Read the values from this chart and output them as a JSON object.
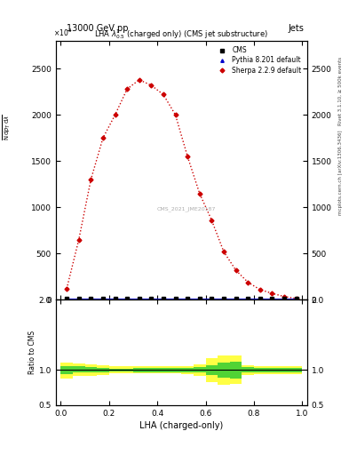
{
  "title_top_left": "13000 GeV pp",
  "title_top_right": "Jets",
  "plot_title": "LHA $\\lambda^{1}_{0.5}$ (charged only) (CMS jet substructure)",
  "xlabel": "LHA (charged-only)",
  "right_label_top": "Rivet 3.1.10, ≥ 500k events",
  "right_label_bottom": "mcplots.cern.ch [arXiv:1306.3436]",
  "watermark": "CMS_2021_JME20187",
  "sherpa_x": [
    0.025,
    0.075,
    0.125,
    0.175,
    0.225,
    0.275,
    0.325,
    0.375,
    0.425,
    0.475,
    0.525,
    0.575,
    0.625,
    0.675,
    0.725,
    0.775,
    0.825,
    0.875,
    0.925,
    0.975
  ],
  "sherpa_y": [
    120,
    650,
    1300,
    1750,
    2000,
    2280,
    2380,
    2320,
    2220,
    2000,
    1550,
    1150,
    860,
    520,
    320,
    190,
    110,
    70,
    35,
    15
  ],
  "cms_x": [
    0.025,
    0.075,
    0.125,
    0.175,
    0.225,
    0.275,
    0.325,
    0.375,
    0.425,
    0.475,
    0.525,
    0.575,
    0.625,
    0.675,
    0.725,
    0.775,
    0.825,
    0.875,
    0.925,
    0.975
  ],
  "cms_y": [
    10,
    10,
    10,
    10,
    10,
    10,
    10,
    10,
    10,
    10,
    10,
    10,
    10,
    10,
    10,
    10,
    10,
    10,
    10,
    10
  ],
  "pythia_x": [
    0.025,
    0.075,
    0.125,
    0.175,
    0.225,
    0.275,
    0.325,
    0.375,
    0.425,
    0.475,
    0.525,
    0.575,
    0.625,
    0.675,
    0.725,
    0.775,
    0.825,
    0.875,
    0.925,
    0.975
  ],
  "pythia_y": [
    10,
    10,
    10,
    10,
    10,
    10,
    10,
    10,
    10,
    10,
    10,
    10,
    10,
    10,
    10,
    10,
    10,
    10,
    10,
    10
  ],
  "ylim": [
    0,
    2800
  ],
  "yticks": [
    0,
    500,
    1000,
    1500,
    2000,
    2500
  ],
  "ylim_ratio": [
    0.5,
    2.0
  ],
  "ratio_yticks": [
    0.5,
    1.0,
    2.0
  ],
  "xticks": [
    0.0,
    0.2,
    0.4,
    0.6,
    0.8,
    1.0
  ],
  "green_band_edges": [
    0.0,
    0.05,
    0.1,
    0.15,
    0.2,
    0.25,
    0.3,
    0.35,
    0.4,
    0.45,
    0.5,
    0.55,
    0.6,
    0.65,
    0.7,
    0.75,
    0.8,
    0.85,
    0.9,
    0.95,
    1.0
  ],
  "green_band_low": [
    0.94,
    0.96,
    0.96,
    0.97,
    0.98,
    0.98,
    0.97,
    0.97,
    0.97,
    0.97,
    0.97,
    0.96,
    0.93,
    0.89,
    0.88,
    0.96,
    0.97,
    0.97,
    0.97,
    0.97
  ],
  "green_band_high": [
    1.06,
    1.05,
    1.04,
    1.03,
    1.02,
    1.02,
    1.03,
    1.03,
    1.03,
    1.03,
    1.03,
    1.04,
    1.07,
    1.11,
    1.12,
    1.04,
    1.03,
    1.03,
    1.03,
    1.03
  ],
  "yellow_band_low": [
    0.88,
    0.91,
    0.92,
    0.93,
    0.95,
    0.95,
    0.95,
    0.95,
    0.95,
    0.95,
    0.94,
    0.92,
    0.83,
    0.79,
    0.8,
    0.93,
    0.94,
    0.94,
    0.94,
    0.94
  ],
  "yellow_band_high": [
    1.1,
    1.09,
    1.08,
    1.07,
    1.05,
    1.05,
    1.05,
    1.05,
    1.05,
    1.05,
    1.06,
    1.08,
    1.17,
    1.21,
    1.2,
    1.07,
    1.06,
    1.06,
    1.06,
    1.06
  ],
  "cms_color": "#000000",
  "pythia_color": "#0000CC",
  "sherpa_color": "#CC0000",
  "green_color": "#33CC33",
  "yellow_color": "#FFFF44",
  "background_color": "#FFFFFF",
  "font_size": 6.5,
  "small_font": 5.5
}
